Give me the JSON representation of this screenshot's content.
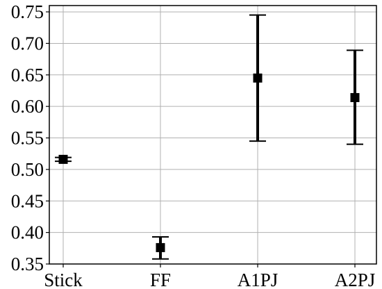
{
  "chart_data": {
    "type": "scatter",
    "title": "",
    "xlabel": "",
    "ylabel": "",
    "categories": [
      "Stick",
      "FF",
      "A1PJ",
      "A2PJ"
    ],
    "values": [
      0.516,
      0.376,
      0.645,
      0.614
    ],
    "error_low": [
      0.513,
      0.358,
      0.545,
      0.54
    ],
    "error_high": [
      0.519,
      0.393,
      0.745,
      0.689
    ],
    "ylim": [
      0.35,
      0.76
    ],
    "yticks": [
      "0.35",
      "0.40",
      "0.45",
      "0.50",
      "0.55",
      "0.60",
      "0.65",
      "0.70",
      "0.75"
    ],
    "ytick_values": [
      0.35,
      0.4,
      0.45,
      0.5,
      0.55,
      0.6,
      0.65,
      0.7,
      0.75
    ],
    "grid": true,
    "marker": "square",
    "marker_color": "#000000",
    "grid_color": "#b0b0b0"
  }
}
